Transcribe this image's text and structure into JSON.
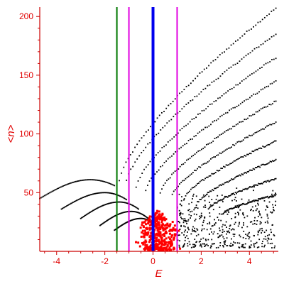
{
  "chart_data": {
    "type": "scatter",
    "xlabel": "E",
    "ylabel": "<n>",
    "xlim": [
      -4.7,
      5.2
    ],
    "ylim": [
      0,
      208
    ],
    "x_ticks": [
      -4,
      -2,
      0,
      2,
      4
    ],
    "y_ticks": [
      50,
      100,
      150,
      200
    ],
    "grid": false,
    "legend": "none",
    "vertical_lines": [
      {
        "x": -1.5,
        "color": "#007700",
        "width": 2
      },
      {
        "x": -1.0,
        "color": "#e000e0",
        "width": 2
      },
      {
        "x": 0.0,
        "color": "#0000ee",
        "width": 4
      },
      {
        "x": 1.0,
        "color": "#e000e0",
        "width": 2
      }
    ],
    "series": [
      {
        "color": "#000000",
        "branches": [
          {
            "x0": -4.7,
            "y0": 45,
            "peak_x": -2.6,
            "peak_y": 61,
            "x1": -1.6,
            "y1": 56
          },
          {
            "x0": -3.8,
            "y0": 36,
            "peak_x": -2.0,
            "peak_y": 50,
            "x1": -1.1,
            "y1": 44
          },
          {
            "x0": -3.0,
            "y0": 28,
            "peak_x": -1.4,
            "peak_y": 42,
            "x1": -0.6,
            "y1": 36
          },
          {
            "x0": -2.2,
            "y0": 22,
            "peak_x": -0.9,
            "peak_y": 34,
            "x1": -0.2,
            "y1": 28
          },
          {
            "x0": -1.6,
            "y0": 18,
            "peak_x": -0.5,
            "peak_y": 28,
            "x1": 0.0,
            "y1": 24
          }
        ],
        "bands": [
          {
            "x0": -1.4,
            "y0": 60,
            "x1": 5.1,
            "y1": 207
          },
          {
            "x0": -1.1,
            "y0": 60,
            "x1": 5.1,
            "y1": 185
          },
          {
            "x0": -0.7,
            "y0": 55,
            "x1": 5.1,
            "y1": 165
          },
          {
            "x0": -0.3,
            "y0": 52,
            "x1": 5.1,
            "y1": 145
          },
          {
            "x0": 0.3,
            "y0": 50,
            "x1": 5.1,
            "y1": 128
          },
          {
            "x0": 0.8,
            "y0": 48,
            "x1": 5.1,
            "y1": 110
          },
          {
            "x0": 1.3,
            "y0": 45,
            "x1": 5.1,
            "y1": 94
          },
          {
            "x0": 1.8,
            "y0": 40,
            "x1": 5.1,
            "y1": 78
          },
          {
            "x0": 2.3,
            "y0": 36,
            "x1": 5.1,
            "y1": 62
          },
          {
            "x0": 2.9,
            "y0": 32,
            "x1": 5.1,
            "y1": 48
          }
        ],
        "cloud": {
          "x_min": 1.0,
          "x_max": 5.1,
          "y_min": 0,
          "y_max": 55,
          "count": 420
        }
      },
      {
        "color": "#ff0000",
        "cloud": {
          "x_center": 0.2,
          "x_spread": 0.9,
          "y_min": 0,
          "y_max": 34,
          "count": 380
        }
      }
    ]
  }
}
